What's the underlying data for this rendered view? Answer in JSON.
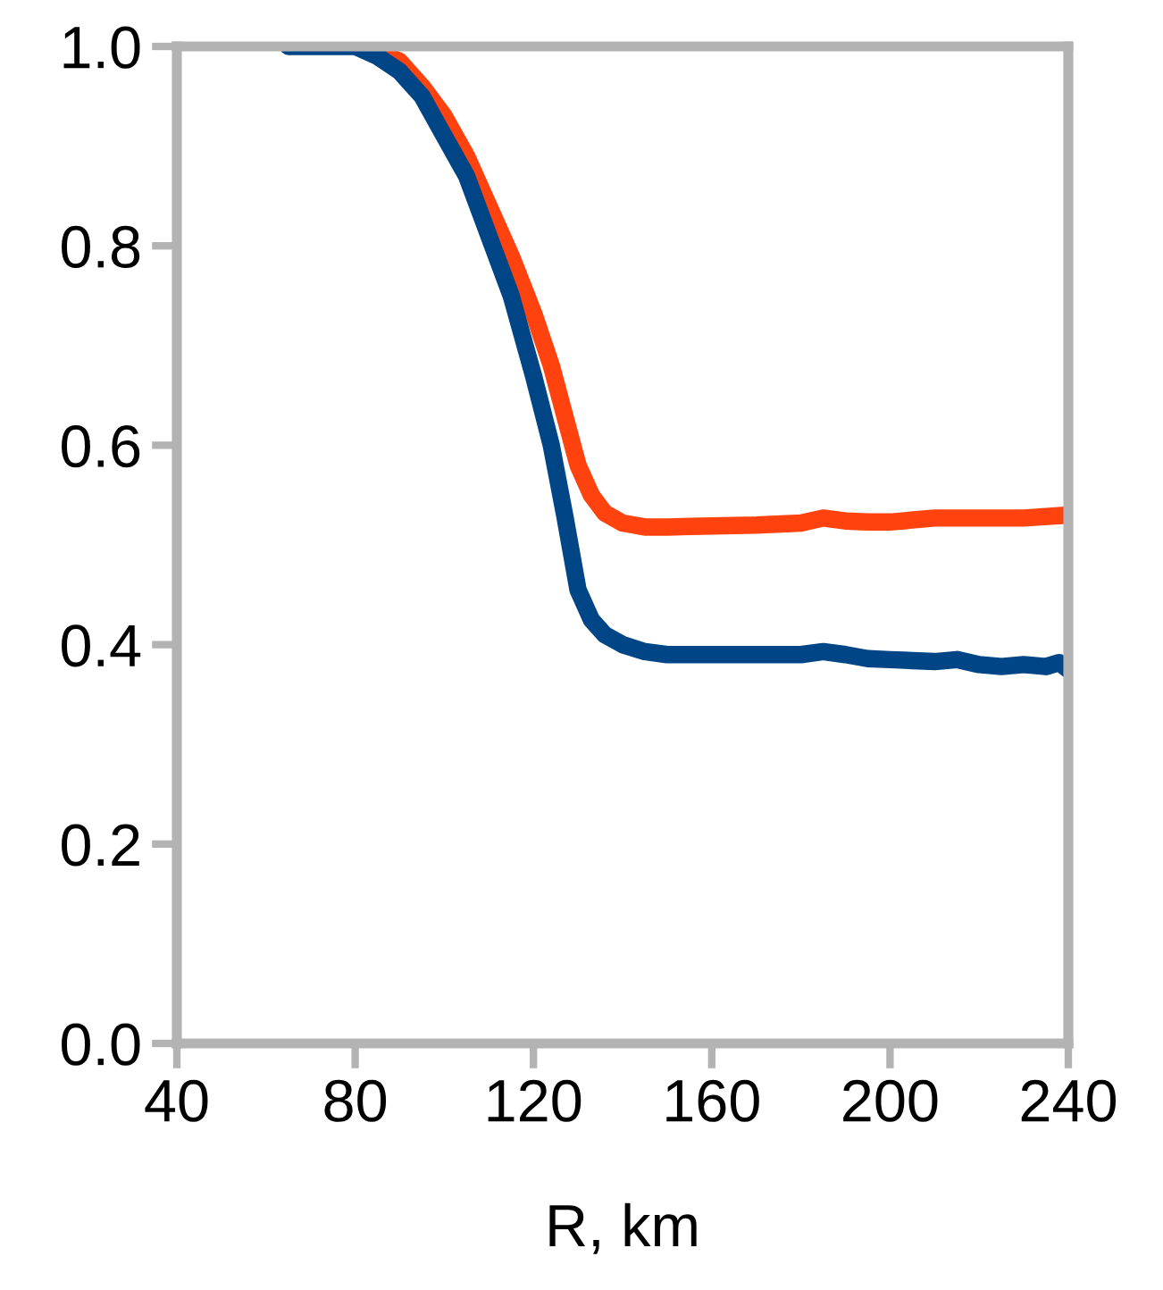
{
  "chart_data": {
    "type": "line",
    "xlabel": "R, km",
    "xlim": [
      40,
      240
    ],
    "xticks": [
      40,
      80,
      120,
      160,
      200,
      240
    ],
    "ylim": [
      0,
      1
    ],
    "yticks": [
      {
        "value": 0,
        "label": "0.0"
      },
      0.2,
      0.4,
      0.6,
      0.8,
      {
        "value": 1,
        "label": "1.0"
      }
    ],
    "grid": false,
    "marker": "none",
    "line_style": "solid",
    "series": [
      {
        "color": "#ff420e",
        "x": [
          85,
          90,
          95,
          100,
          105,
          110,
          115,
          120,
          124,
          127,
          130,
          133,
          136,
          140,
          145,
          150,
          160,
          170,
          180,
          185,
          190,
          195,
          200,
          210,
          220,
          230,
          240
        ],
        "values": [
          0.995,
          0.985,
          0.96,
          0.93,
          0.89,
          0.84,
          0.79,
          0.733,
          0.68,
          0.63,
          0.58,
          0.55,
          0.532,
          0.522,
          0.518,
          0.518,
          0.519,
          0.52,
          0.522,
          0.527,
          0.524,
          0.523,
          0.523,
          0.527,
          0.527,
          0.527,
          0.53
        ]
      },
      {
        "color": "#004586",
        "x": [
          65,
          80,
          85,
          90,
          95,
          100,
          105,
          110,
          115,
          120,
          124,
          127,
          130,
          133,
          136,
          140,
          145,
          150,
          160,
          170,
          180,
          185,
          190,
          195,
          200,
          210,
          215,
          220,
          225,
          230,
          235,
          238,
          240
        ],
        "values": [
          1.0,
          1.0,
          0.99,
          0.975,
          0.95,
          0.91,
          0.87,
          0.81,
          0.75,
          0.67,
          0.6,
          0.53,
          0.455,
          0.425,
          0.41,
          0.4,
          0.393,
          0.39,
          0.39,
          0.39,
          0.39,
          0.393,
          0.39,
          0.386,
          0.385,
          0.383,
          0.385,
          0.38,
          0.378,
          0.38,
          0.378,
          0.382,
          0.375
        ]
      }
    ]
  }
}
